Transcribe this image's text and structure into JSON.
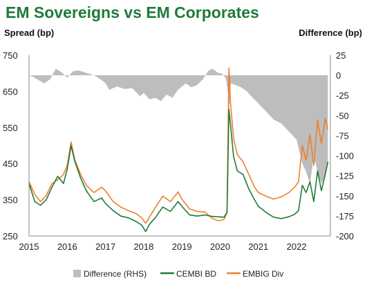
{
  "chart_data": {
    "type": "line",
    "title": "EM Sovereigns vs EM Corporates",
    "ylabel": "Spread (bp)",
    "y2label": "Difference (bp)",
    "xlim": [
      2015,
      2022.85
    ],
    "ylim": [
      250,
      750
    ],
    "y2lim": [
      -200,
      25
    ],
    "x_ticks": [
      "2015",
      "2016",
      "2017",
      "2018",
      "2019",
      "2020",
      "2021",
      "2022"
    ],
    "y_ticks": [
      "750",
      "650",
      "550",
      "450",
      "350",
      "250"
    ],
    "y2_ticks": [
      "25",
      "0",
      "-25",
      "-50",
      "-75",
      "-100",
      "-125",
      "-150",
      "-175",
      "-200"
    ],
    "legend": {
      "position": "bottom",
      "entries": [
        "Difference (RHS)",
        "CEMBI BD",
        "EMBIG Div"
      ]
    },
    "colors": {
      "difference": "#bdbdbd",
      "cembi": "#1f7a34",
      "embig": "#ec7f2e",
      "title": "#1e7b3a"
    },
    "series": [
      {
        "name": "Difference (RHS)",
        "axis": "right",
        "style": "area",
        "points": [
          [
            2015.0,
            0
          ],
          [
            2015.1,
            -2
          ],
          [
            2015.25,
            -6
          ],
          [
            2015.4,
            -10
          ],
          [
            2015.55,
            -5
          ],
          [
            2015.7,
            8
          ],
          [
            2015.85,
            4
          ],
          [
            2016.0,
            -3
          ],
          [
            2016.15,
            5
          ],
          [
            2016.3,
            6
          ],
          [
            2016.5,
            3
          ],
          [
            2016.7,
            0
          ],
          [
            2016.9,
            -6
          ],
          [
            2017.0,
            -10
          ],
          [
            2017.1,
            -18
          ],
          [
            2017.3,
            -14
          ],
          [
            2017.5,
            -17
          ],
          [
            2017.7,
            -16
          ],
          [
            2017.9,
            -26
          ],
          [
            2018.0,
            -22
          ],
          [
            2018.15,
            -30
          ],
          [
            2018.3,
            -28
          ],
          [
            2018.45,
            -32
          ],
          [
            2018.6,
            -24
          ],
          [
            2018.75,
            -28
          ],
          [
            2018.9,
            -18
          ],
          [
            2019.0,
            -14
          ],
          [
            2019.1,
            -10
          ],
          [
            2019.25,
            -15
          ],
          [
            2019.4,
            -12
          ],
          [
            2019.55,
            -5
          ],
          [
            2019.7,
            6
          ],
          [
            2019.8,
            8
          ],
          [
            2019.95,
            3
          ],
          [
            2020.05,
            2
          ],
          [
            2020.15,
            -4
          ],
          [
            2020.2,
            -20
          ],
          [
            2020.23,
            -45
          ],
          [
            2020.28,
            -10
          ],
          [
            2020.4,
            -12
          ],
          [
            2020.55,
            -15
          ],
          [
            2020.7,
            -20
          ],
          [
            2020.85,
            -28
          ],
          [
            2021.0,
            -35
          ],
          [
            2021.2,
            -45
          ],
          [
            2021.4,
            -55
          ],
          [
            2021.6,
            -60
          ],
          [
            2021.8,
            -70
          ],
          [
            2022.0,
            -80
          ],
          [
            2022.15,
            -110
          ],
          [
            2022.25,
            -120
          ],
          [
            2022.35,
            -135
          ],
          [
            2022.45,
            -100
          ],
          [
            2022.55,
            -120
          ],
          [
            2022.65,
            -135
          ],
          [
            2022.75,
            -125
          ],
          [
            2022.82,
            -110
          ]
        ]
      },
      {
        "name": "CEMBI BD",
        "axis": "left",
        "style": "line",
        "points": [
          [
            2015.0,
            395
          ],
          [
            2015.15,
            345
          ],
          [
            2015.3,
            335
          ],
          [
            2015.45,
            350
          ],
          [
            2015.6,
            385
          ],
          [
            2015.75,
            415
          ],
          [
            2015.9,
            395
          ],
          [
            2016.0,
            435
          ],
          [
            2016.1,
            500
          ],
          [
            2016.2,
            455
          ],
          [
            2016.35,
            410
          ],
          [
            2016.5,
            375
          ],
          [
            2016.7,
            345
          ],
          [
            2016.9,
            355
          ],
          [
            2017.0,
            340
          ],
          [
            2017.2,
            320
          ],
          [
            2017.4,
            305
          ],
          [
            2017.6,
            300
          ],
          [
            2017.8,
            290
          ],
          [
            2017.95,
            280
          ],
          [
            2018.05,
            262
          ],
          [
            2018.15,
            282
          ],
          [
            2018.3,
            300
          ],
          [
            2018.5,
            330
          ],
          [
            2018.7,
            318
          ],
          [
            2018.9,
            345
          ],
          [
            2019.0,
            332
          ],
          [
            2019.2,
            308
          ],
          [
            2019.4,
            305
          ],
          [
            2019.6,
            308
          ],
          [
            2019.8,
            304
          ],
          [
            2019.95,
            303
          ],
          [
            2020.1,
            302
          ],
          [
            2020.18,
            315
          ],
          [
            2020.23,
            600
          ],
          [
            2020.27,
            560
          ],
          [
            2020.35,
            470
          ],
          [
            2020.45,
            430
          ],
          [
            2020.6,
            420
          ],
          [
            2020.75,
            380
          ],
          [
            2020.9,
            350
          ],
          [
            2021.0,
            332
          ],
          [
            2021.2,
            315
          ],
          [
            2021.4,
            302
          ],
          [
            2021.6,
            298
          ],
          [
            2021.8,
            303
          ],
          [
            2021.95,
            310
          ],
          [
            2022.05,
            320
          ],
          [
            2022.15,
            390
          ],
          [
            2022.25,
            370
          ],
          [
            2022.35,
            400
          ],
          [
            2022.45,
            345
          ],
          [
            2022.55,
            430
          ],
          [
            2022.65,
            375
          ],
          [
            2022.75,
            420
          ],
          [
            2022.82,
            455
          ]
        ]
      },
      {
        "name": "EMBIG Div",
        "axis": "left",
        "style": "line",
        "points": [
          [
            2015.0,
            400
          ],
          [
            2015.15,
            365
          ],
          [
            2015.3,
            345
          ],
          [
            2015.45,
            362
          ],
          [
            2015.6,
            395
          ],
          [
            2015.75,
            405
          ],
          [
            2015.9,
            420
          ],
          [
            2016.0,
            445
          ],
          [
            2016.1,
            510
          ],
          [
            2016.2,
            460
          ],
          [
            2016.35,
            420
          ],
          [
            2016.5,
            390
          ],
          [
            2016.7,
            370
          ],
          [
            2016.9,
            385
          ],
          [
            2017.0,
            375
          ],
          [
            2017.2,
            345
          ],
          [
            2017.4,
            330
          ],
          [
            2017.6,
            320
          ],
          [
            2017.8,
            312
          ],
          [
            2017.95,
            300
          ],
          [
            2018.05,
            285
          ],
          [
            2018.15,
            302
          ],
          [
            2018.3,
            328
          ],
          [
            2018.5,
            360
          ],
          [
            2018.7,
            345
          ],
          [
            2018.9,
            372
          ],
          [
            2019.0,
            352
          ],
          [
            2019.2,
            325
          ],
          [
            2019.4,
            318
          ],
          [
            2019.6,
            316
          ],
          [
            2019.8,
            298
          ],
          [
            2019.95,
            292
          ],
          [
            2020.1,
            295
          ],
          [
            2020.18,
            315
          ],
          [
            2020.23,
            715
          ],
          [
            2020.27,
            620
          ],
          [
            2020.35,
            520
          ],
          [
            2020.45,
            475
          ],
          [
            2020.6,
            455
          ],
          [
            2020.75,
            420
          ],
          [
            2020.9,
            385
          ],
          [
            2021.0,
            370
          ],
          [
            2021.2,
            360
          ],
          [
            2021.4,
            352
          ],
          [
            2021.6,
            358
          ],
          [
            2021.8,
            370
          ],
          [
            2021.95,
            385
          ],
          [
            2022.05,
            400
          ],
          [
            2022.15,
            500
          ],
          [
            2022.25,
            460
          ],
          [
            2022.35,
            530
          ],
          [
            2022.45,
            445
          ],
          [
            2022.55,
            570
          ],
          [
            2022.65,
            505
          ],
          [
            2022.75,
            575
          ],
          [
            2022.82,
            545
          ]
        ]
      }
    ]
  }
}
